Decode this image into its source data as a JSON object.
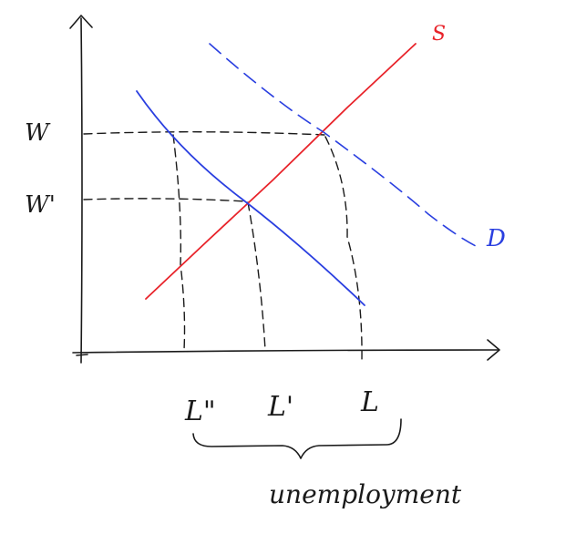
{
  "diagram": {
    "axis_labels": {
      "w": "W",
      "w_prime": "W'",
      "l_double_prime": "L\"",
      "l_prime": "L'",
      "l": "L"
    },
    "curve_labels": {
      "supply": "S",
      "demand": "D"
    },
    "brace_label": "unemployment",
    "colors": {
      "ink": "#1a1a1a",
      "supply": "#e8232a",
      "demand": "#2a3fe0",
      "background": "#ffffff"
    }
  }
}
